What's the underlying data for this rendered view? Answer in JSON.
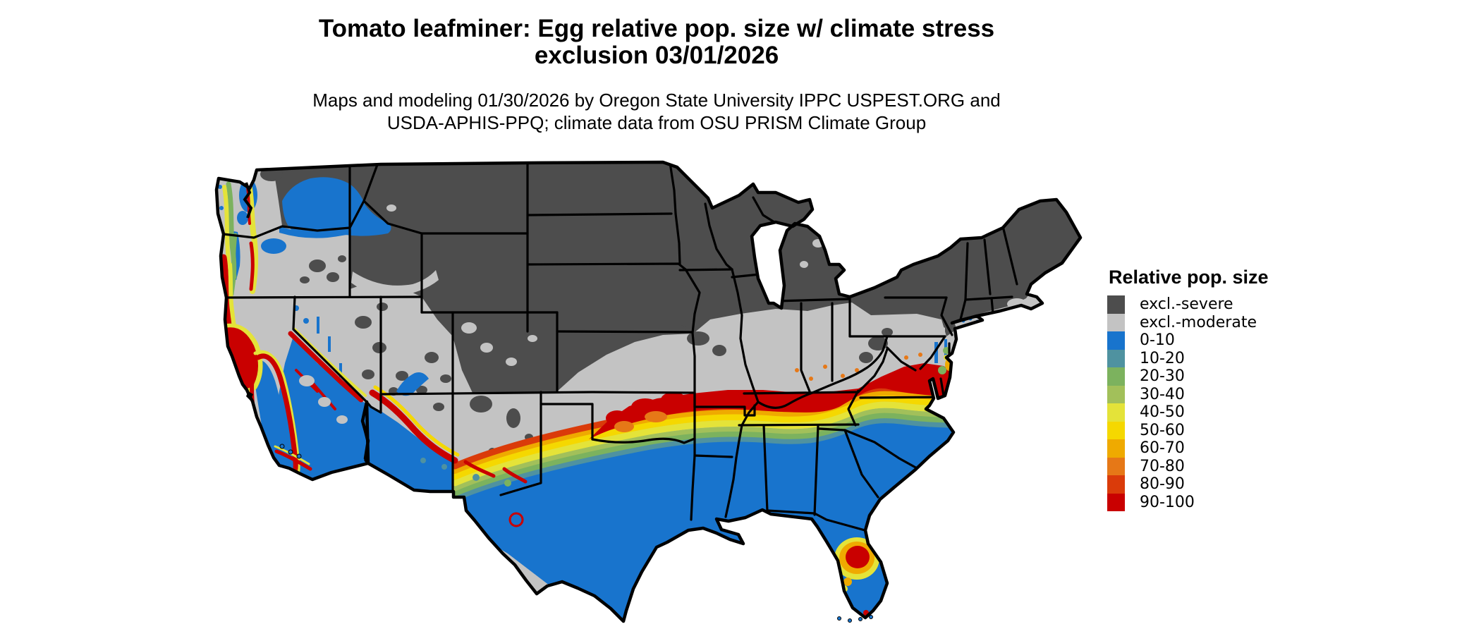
{
  "title": {
    "line1": "Tomato leafminer: Egg relative pop. size w/ climate stress",
    "line2": "exclusion 03/01/2026"
  },
  "subtitle": {
    "line1": "Maps and modeling 01/30/2026 by Oregon State University IPPC USPEST.ORG and",
    "line2": "USDA-APHIS-PPQ; climate data from OSU PRISM Climate Group"
  },
  "legend": {
    "title": "Relative pop. size",
    "items": [
      {
        "label": "excl.-severe",
        "color": "#4d4d4d"
      },
      {
        "label": "excl.-moderate",
        "color": "#c3c3c3"
      },
      {
        "label": "0-10",
        "color": "#1874cd"
      },
      {
        "label": "10-20",
        "color": "#4f92a0"
      },
      {
        "label": "20-30",
        "color": "#7cb25e"
      },
      {
        "label": "30-40",
        "color": "#a2c05a"
      },
      {
        "label": "40-50",
        "color": "#e4e339"
      },
      {
        "label": "50-60",
        "color": "#f5d800"
      },
      {
        "label": "60-70",
        "color": "#efaa00"
      },
      {
        "label": "70-80",
        "color": "#e67817"
      },
      {
        "label": "80-90",
        "color": "#da3b0a"
      },
      {
        "label": "90-100",
        "color": "#c90000"
      }
    ]
  },
  "palette": {
    "severe": "#4d4d4d",
    "moderate": "#c3c3c3",
    "b010": "#1874cd",
    "b1020": "#4f92a0",
    "b2030": "#7cb25e",
    "b3040": "#a2c05a",
    "b4050": "#e4e339",
    "b5060": "#f5d800",
    "b6070": "#efaa00",
    "b7080": "#e67817",
    "b8090": "#da3b0a",
    "b90100": "#c90000",
    "outline": "#000000"
  },
  "chart_data": {
    "type": "choropleth_map",
    "region": "Contiguous United States",
    "variable": "Tomato leafminer egg relative population size with climate stress exclusion",
    "date_modeled": "03/01/2026",
    "date_produced": "01/30/2026",
    "classes": [
      "excl.-severe",
      "excl.-moderate",
      "0-10",
      "10-20",
      "20-30",
      "30-40",
      "40-50",
      "50-60",
      "60-70",
      "70-80",
      "80-90",
      "90-100"
    ],
    "class_colors": [
      "#4d4d4d",
      "#c3c3c3",
      "#1874cd",
      "#4f92a0",
      "#7cb25e",
      "#a2c05a",
      "#e4e339",
      "#f5d800",
      "#efaa00",
      "#e67817",
      "#da3b0a",
      "#c90000"
    ],
    "legend_position": "right",
    "regions_depicted": [
      {
        "area": "Northern US (N Rockies, N Plains, Upper Midwest, Great Lakes, Northeast, Appalachians)",
        "class": "excl.-severe"
      },
      {
        "area": "Mid-latitude band (Great Basin, Colorado Plateau, KS, MO, OH valley, KY, VA, Mid-Atlantic)",
        "class": "excl.-moderate"
      },
      {
        "area": "Band across S Plains into TN, N AL/GA, Carolinas piedmont and SE Virginia",
        "class": "70-100 (high relative pop.)"
      },
      {
        "area": "Narrow fringe south of the high band and along west-coast mountains",
        "class": "20-70 transition"
      },
      {
        "area": "Southern third: S Texas, Gulf states, Florida, SE coastal plain, SW deserts, CA Central Valley, Puget/Willamette and Columbia Basin",
        "class": "0-10"
      },
      {
        "area": "Central Florida pocket and CA Sierra foothill ring",
        "class": "50-100 (high relative pop.)"
      }
    ]
  }
}
